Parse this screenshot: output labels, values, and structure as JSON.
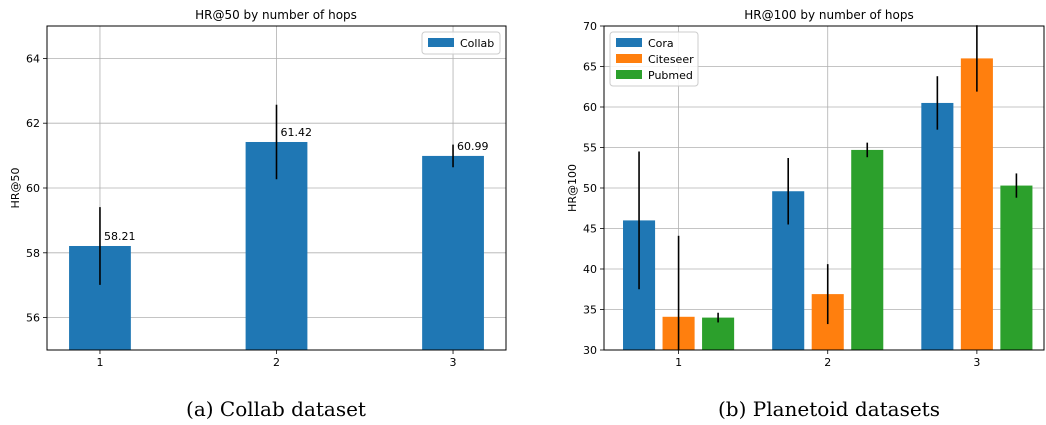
{
  "chart_data": [
    {
      "type": "bar",
      "title": "HR@50 by number of hops",
      "xlabel": "",
      "ylabel": "HR@50",
      "categories": [
        "1",
        "2",
        "3"
      ],
      "ylim": [
        55,
        65
      ],
      "yticks": [
        56,
        58,
        60,
        62,
        64
      ],
      "grid": true,
      "legend_position": "top-right",
      "series": [
        {
          "name": "Collab",
          "color": "#1f77b4",
          "values": [
            58.21,
            61.42,
            60.99
          ],
          "error": [
            1.2,
            1.15,
            0.35
          ],
          "labels": [
            "58.21",
            "61.42",
            "60.99"
          ]
        }
      ],
      "caption": "(a) Collab dataset"
    },
    {
      "type": "bar",
      "title": "HR@100 by number of hops",
      "xlabel": "",
      "ylabel": "HR@100",
      "categories": [
        "1",
        "2",
        "3"
      ],
      "ylim": [
        30,
        70
      ],
      "yticks": [
        30,
        35,
        40,
        45,
        50,
        55,
        60,
        65,
        70
      ],
      "grid": true,
      "legend_position": "top-left",
      "series": [
        {
          "name": "Cora",
          "color": "#1f77b4",
          "values": [
            46.0,
            49.6,
            60.5
          ],
          "error": [
            8.5,
            4.1,
            3.3
          ]
        },
        {
          "name": "Citeseer",
          "color": "#ff7f0e",
          "values": [
            34.1,
            36.9,
            66.0
          ],
          "error": [
            10.0,
            3.7,
            4.1
          ]
        },
        {
          "name": "Pubmed",
          "color": "#2ca02c",
          "values": [
            34.0,
            54.7,
            50.3
          ],
          "error": [
            0.6,
            0.9,
            1.5
          ]
        }
      ],
      "caption": "(b) Planetoid datasets"
    }
  ]
}
